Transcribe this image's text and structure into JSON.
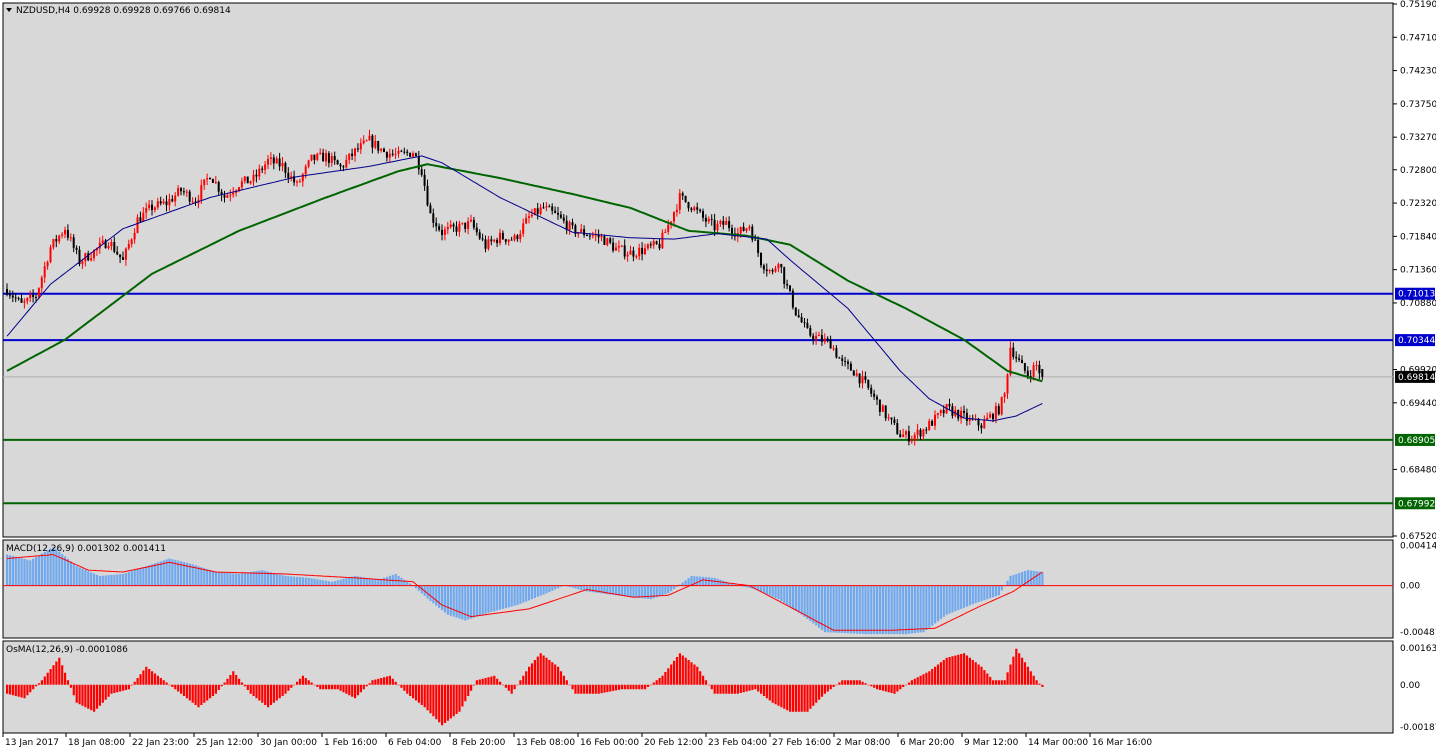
{
  "header": {
    "symbol_menu_icon": "triangle-down-icon",
    "title": "NZDUSD,H4  0.69928 0.69928 0.69766 0.69814"
  },
  "colors": {
    "background": "#d8d8d8",
    "bull_candle": "#ff0000",
    "bear_candle": "#000000",
    "ma_slow": "#006400",
    "ma_fast": "#00008b",
    "resistance_line": "#0000cd",
    "support_line": "#006400",
    "macd_histogram": "#6fa8ef",
    "macd_signal": "#ff0000",
    "osma_histogram": "#ff0000"
  },
  "chart_data": [
    {
      "type": "candlestick",
      "name": "main",
      "symbol": "NZDUSD",
      "timeframe": "H4",
      "ohlc": {
        "open": 0.69928,
        "high": 0.69928,
        "low": 0.69766,
        "close": 0.69814
      },
      "ylim": [
        0.6752,
        0.7519
      ],
      "y_ticks": [
        "0.75190",
        "0.74710",
        "0.74230",
        "0.73750",
        "0.73270",
        "0.72800",
        "0.72320",
        "0.71840",
        "0.71360",
        "0.70880",
        "0.69920",
        "0.69440",
        "0.68480",
        "0.67520"
      ],
      "x_ticks": [
        "13 Jan 2017",
        "18 Jan 08:00",
        "22 Jan 23:00",
        "25 Jan 12:00",
        "30 Jan 00:00",
        "1 Feb 16:00",
        "6 Feb 04:00",
        "8 Feb 20:00",
        "13 Feb 08:00",
        "16 Feb 00:00",
        "20 Feb 12:00",
        "23 Feb 04:00",
        "27 Feb 16:00",
        "2 Mar 08:00",
        "6 Mar 20:00",
        "9 Mar 12:00",
        "14 Mar 00:00",
        "16 Mar 16:00"
      ],
      "close_path": [
        [
          0,
          0.7108
        ],
        [
          5,
          0.7085
        ],
        [
          10,
          0.7098
        ],
        [
          15,
          0.7168
        ],
        [
          20,
          0.7196
        ],
        [
          25,
          0.7148
        ],
        [
          30,
          0.7162
        ],
        [
          35,
          0.7178
        ],
        [
          40,
          0.7148
        ],
        [
          45,
          0.7208
        ],
        [
          50,
          0.7226
        ],
        [
          55,
          0.7232
        ],
        [
          60,
          0.725
        ],
        [
          65,
          0.7236
        ],
        [
          70,
          0.7274
        ],
        [
          75,
          0.7241
        ],
        [
          80,
          0.726
        ],
        [
          85,
          0.7266
        ],
        [
          90,
          0.7293
        ],
        [
          95,
          0.7286
        ],
        [
          100,
          0.7257
        ],
        [
          105,
          0.7295
        ],
        [
          110,
          0.7299
        ],
        [
          115,
          0.7283
        ],
        [
          120,
          0.7306
        ],
        [
          125,
          0.7322
        ],
        [
          130,
          0.7306
        ],
        [
          135,
          0.73
        ],
        [
          140,
          0.7306
        ],
        [
          143,
          0.728
        ],
        [
          146,
          0.7215
        ],
        [
          150,
          0.719
        ],
        [
          155,
          0.7196
        ],
        [
          160,
          0.7202
        ],
        [
          165,
          0.717
        ],
        [
          170,
          0.7183
        ],
        [
          175,
          0.718
        ],
        [
          180,
          0.7211
        ],
        [
          185,
          0.7225
        ],
        [
          190,
          0.7212
        ],
        [
          195,
          0.7193
        ],
        [
          200,
          0.7188
        ],
        [
          205,
          0.7182
        ],
        [
          210,
          0.7166
        ],
        [
          215,
          0.716
        ],
        [
          220,
          0.7165
        ],
        [
          225,
          0.7172
        ],
        [
          228,
          0.72
        ],
        [
          232,
          0.724
        ],
        [
          236,
          0.7228
        ],
        [
          240,
          0.721
        ],
        [
          244,
          0.7197
        ],
        [
          248,
          0.7203
        ],
        [
          252,
          0.7188
        ],
        [
          256,
          0.72
        ],
        [
          260,
          0.7148
        ],
        [
          264,
          0.713
        ],
        [
          266,
          0.7152
        ],
        [
          268,
          0.7122
        ],
        [
          272,
          0.7075
        ],
        [
          276,
          0.7045
        ],
        [
          280,
          0.7036
        ],
        [
          284,
          0.703
        ],
        [
          288,
          0.7
        ],
        [
          292,
          0.699
        ],
        [
          296,
          0.697
        ],
        [
          300,
          0.6945
        ],
        [
          304,
          0.692
        ],
        [
          308,
          0.6898
        ],
        [
          312,
          0.6895
        ],
        [
          316,
          0.6905
        ],
        [
          320,
          0.692
        ],
        [
          324,
          0.6935
        ],
        [
          328,
          0.6928
        ],
        [
          332,
          0.6918
        ],
        [
          336,
          0.6912
        ],
        [
          338,
          0.692
        ],
        [
          340,
          0.6928
        ],
        [
          342,
          0.6935
        ],
        [
          344,
          0.6955
        ],
        [
          346,
          0.7025
        ],
        [
          348,
          0.701
        ],
        [
          350,
          0.6995
        ],
        [
          352,
          0.6985
        ],
        [
          355,
          0.6998
        ],
        [
          357,
          0.6981
        ]
      ],
      "ma_slow": [
        [
          0,
          0.699
        ],
        [
          20,
          0.7035
        ],
        [
          50,
          0.713
        ],
        [
          80,
          0.7192
        ],
        [
          110,
          0.724
        ],
        [
          135,
          0.7278
        ],
        [
          145,
          0.7288
        ],
        [
          170,
          0.7268
        ],
        [
          195,
          0.7245
        ],
        [
          215,
          0.7225
        ],
        [
          235,
          0.7192
        ],
        [
          255,
          0.7185
        ],
        [
          270,
          0.7172
        ],
        [
          290,
          0.712
        ],
        [
          310,
          0.708
        ],
        [
          330,
          0.7035
        ],
        [
          345,
          0.699
        ],
        [
          357,
          0.6975
        ]
      ],
      "ma_fast": [
        [
          0,
          0.704
        ],
        [
          15,
          0.7115
        ],
        [
          40,
          0.7195
        ],
        [
          70,
          0.724
        ],
        [
          100,
          0.727
        ],
        [
          125,
          0.7285
        ],
        [
          143,
          0.73
        ],
        [
          150,
          0.729
        ],
        [
          170,
          0.724
        ],
        [
          195,
          0.719
        ],
        [
          215,
          0.7182
        ],
        [
          230,
          0.718
        ],
        [
          245,
          0.7188
        ],
        [
          262,
          0.718
        ],
        [
          270,
          0.715
        ],
        [
          290,
          0.708
        ],
        [
          308,
          0.699
        ],
        [
          318,
          0.695
        ],
        [
          330,
          0.6922
        ],
        [
          340,
          0.6918
        ],
        [
          348,
          0.6925
        ],
        [
          357,
          0.6943
        ]
      ],
      "hlines": [
        {
          "value": 0.71013,
          "label": "0.71013",
          "kind": "resistance"
        },
        {
          "value": 0.70344,
          "label": "0.70344",
          "kind": "resistance"
        },
        {
          "value": 0.68905,
          "label": "0.68905",
          "kind": "support"
        },
        {
          "value": 0.67992,
          "label": "0.67992",
          "kind": "support"
        }
      ],
      "current_price_label": "0.69814",
      "bars": 358
    },
    {
      "type": "histogram",
      "name": "MACD",
      "label": "MACD(12,26,9) 0.001302 0.001411",
      "ylim": [
        -0.0053,
        0.0046
      ],
      "y_ticks": [
        "0.004146",
        "0.00",
        "-0.00481"
      ],
      "values": [
        [
          0,
          0.0032
        ],
        [
          8,
          0.0026
        ],
        [
          16,
          0.004
        ],
        [
          24,
          0.002
        ],
        [
          32,
          0.001
        ],
        [
          40,
          0.0012
        ],
        [
          48,
          0.002
        ],
        [
          56,
          0.0028
        ],
        [
          64,
          0.0022
        ],
        [
          72,
          0.0014
        ],
        [
          80,
          0.0012
        ],
        [
          88,
          0.0016
        ],
        [
          96,
          0.001
        ],
        [
          104,
          0.0008
        ],
        [
          112,
          0.0004
        ],
        [
          120,
          0.001
        ],
        [
          128,
          0.0006
        ],
        [
          134,
          0.0012
        ],
        [
          140,
          0.0
        ],
        [
          146,
          -0.0016
        ],
        [
          152,
          -0.003
        ],
        [
          158,
          -0.0036
        ],
        [
          166,
          -0.0028
        ],
        [
          176,
          -0.002
        ],
        [
          186,
          -0.0008
        ],
        [
          192,
          0.0
        ],
        [
          200,
          -0.0006
        ],
        [
          210,
          -0.001
        ],
        [
          222,
          -0.0014
        ],
        [
          228,
          -0.0008
        ],
        [
          236,
          0.001
        ],
        [
          244,
          0.0008
        ],
        [
          250,
          0.0002
        ],
        [
          258,
          -0.0004
        ],
        [
          266,
          -0.0014
        ],
        [
          274,
          -0.003
        ],
        [
          282,
          -0.0048
        ],
        [
          296,
          -0.005
        ],
        [
          310,
          -0.005
        ],
        [
          316,
          -0.0048
        ],
        [
          324,
          -0.003
        ],
        [
          334,
          -0.0018
        ],
        [
          342,
          -0.001
        ],
        [
          346,
          0.001
        ],
        [
          352,
          0.0016
        ],
        [
          357,
          0.0014
        ]
      ],
      "signal": [
        [
          0,
          0.0028
        ],
        [
          16,
          0.0032
        ],
        [
          28,
          0.0016
        ],
        [
          40,
          0.0014
        ],
        [
          56,
          0.0024
        ],
        [
          72,
          0.0014
        ],
        [
          96,
          0.0012
        ],
        [
          120,
          0.0008
        ],
        [
          140,
          0.0004
        ],
        [
          150,
          -0.002
        ],
        [
          160,
          -0.0032
        ],
        [
          180,
          -0.0024
        ],
        [
          200,
          -0.0004
        ],
        [
          216,
          -0.0012
        ],
        [
          228,
          -0.001
        ],
        [
          240,
          0.0006
        ],
        [
          256,
          0.0
        ],
        [
          270,
          -0.0022
        ],
        [
          285,
          -0.0046
        ],
        [
          305,
          -0.0046
        ],
        [
          320,
          -0.0044
        ],
        [
          335,
          -0.0022
        ],
        [
          347,
          -0.0006
        ],
        [
          357,
          0.0014
        ]
      ]
    },
    {
      "type": "histogram",
      "name": "OsMA",
      "label": "OsMA(12,26,9) -0.0001086",
      "ylim": [
        -0.0021,
        0.0019
      ],
      "y_ticks": [
        "0.001635",
        "0.00",
        "-0.001878"
      ],
      "values": [
        [
          0,
          -0.0004
        ],
        [
          6,
          -0.0006
        ],
        [
          12,
          0.0002
        ],
        [
          18,
          0.0012
        ],
        [
          24,
          -0.0008
        ],
        [
          30,
          -0.0012
        ],
        [
          36,
          -0.0004
        ],
        [
          42,
          -0.0002
        ],
        [
          48,
          0.0008
        ],
        [
          54,
          0.0002
        ],
        [
          60,
          -0.0004
        ],
        [
          66,
          -0.001
        ],
        [
          72,
          -0.0004
        ],
        [
          78,
          0.0006
        ],
        [
          84,
          -0.0004
        ],
        [
          90,
          -0.001
        ],
        [
          96,
          -0.0004
        ],
        [
          102,
          0.0004
        ],
        [
          108,
          -0.0002
        ],
        [
          114,
          -0.0002
        ],
        [
          120,
          -0.0006
        ],
        [
          126,
          0.0002
        ],
        [
          132,
          0.0004
        ],
        [
          138,
          -0.0004
        ],
        [
          144,
          -0.001
        ],
        [
          150,
          -0.0018
        ],
        [
          156,
          -0.0012
        ],
        [
          162,
          0.0002
        ],
        [
          168,
          0.0004
        ],
        [
          174,
          -0.0004
        ],
        [
          180,
          0.0008
        ],
        [
          184,
          0.0014
        ],
        [
          190,
          0.0008
        ],
        [
          196,
          -0.0004
        ],
        [
          204,
          -0.0004
        ],
        [
          212,
          -0.0002
        ],
        [
          220,
          -0.0002
        ],
        [
          226,
          0.0004
        ],
        [
          232,
          0.0014
        ],
        [
          238,
          0.0008
        ],
        [
          244,
          -0.0004
        ],
        [
          252,
          -0.0004
        ],
        [
          258,
          -0.0002
        ],
        [
          264,
          -0.0008
        ],
        [
          270,
          -0.0012
        ],
        [
          276,
          -0.0012
        ],
        [
          282,
          -0.0004
        ],
        [
          288,
          0.0002
        ],
        [
          294,
          0.0002
        ],
        [
          300,
          -0.0002
        ],
        [
          306,
          -0.0004
        ],
        [
          312,
          0.0002
        ],
        [
          318,
          0.0006
        ],
        [
          324,
          0.0012
        ],
        [
          330,
          0.0014
        ],
        [
          336,
          0.0008
        ],
        [
          340,
          0.0002
        ],
        [
          344,
          0.0002
        ],
        [
          348,
          0.0016
        ],
        [
          352,
          0.0008
        ],
        [
          355,
          0.0002
        ],
        [
          357,
          -0.0001
        ]
      ]
    }
  ]
}
